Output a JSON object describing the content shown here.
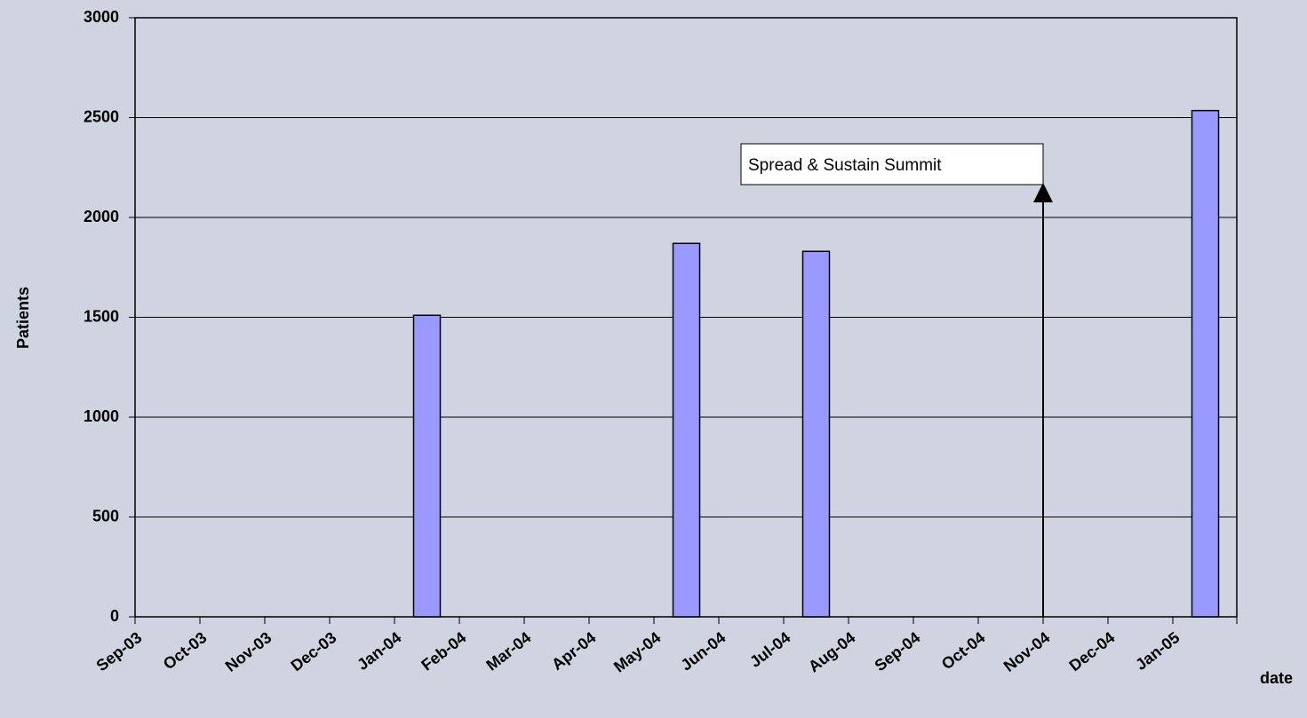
{
  "chart_data": {
    "type": "bar",
    "ylabel": "Patients",
    "xlabel": "date",
    "categories": [
      "Sep-03",
      "Oct-03",
      "Nov-03",
      "Dec-03",
      "Jan-04",
      "Feb-04",
      "Mar-04",
      "Apr-04",
      "May-04",
      "Jun-04",
      "Jul-04",
      "Aug-04",
      "Sep-04",
      "Oct-04",
      "Nov-04",
      "Dec-04",
      "Jan-05"
    ],
    "values": [
      null,
      null,
      null,
      null,
      1510,
      null,
      null,
      null,
      1870,
      null,
      1830,
      null,
      null,
      null,
      null,
      null,
      2535
    ],
    "color": "#9999ff",
    "ylim": [
      0,
      3000
    ],
    "yticks": [
      0,
      500,
      1000,
      1500,
      2000,
      2500,
      3000
    ],
    "grid": true,
    "annotation": "Spread & Sustain Summit"
  }
}
